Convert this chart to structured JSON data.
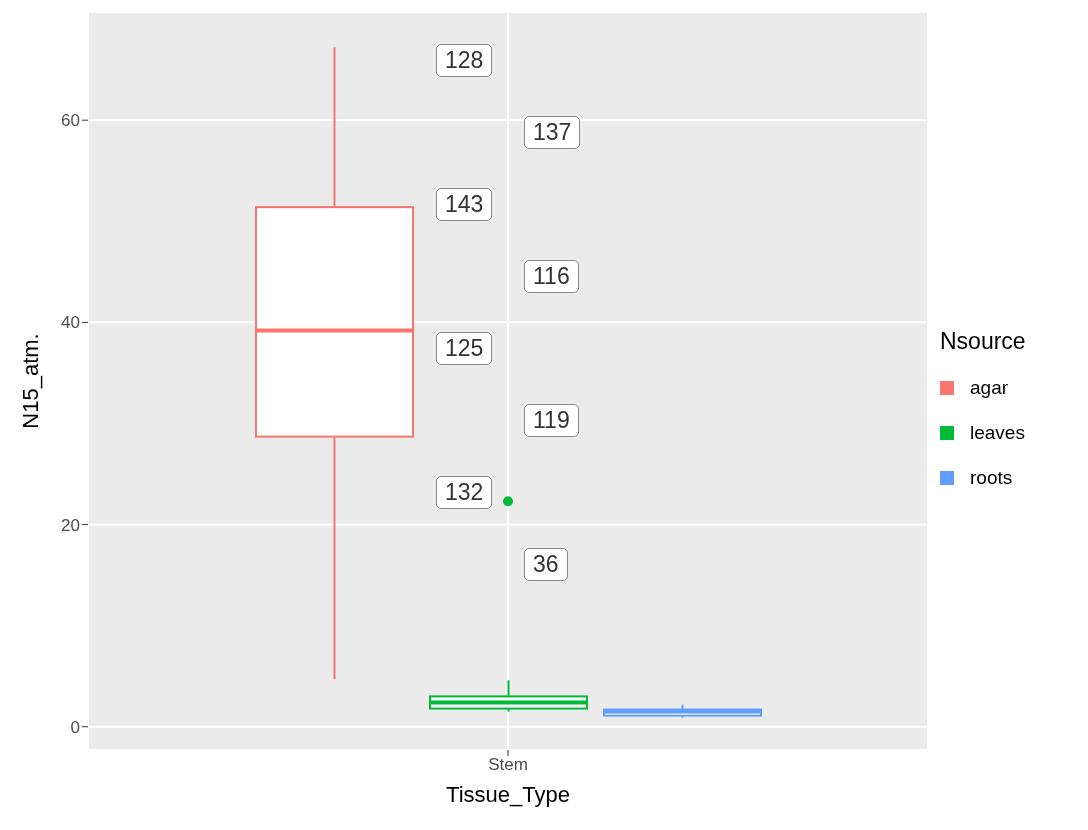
{
  "chart_data": {
    "type": "box",
    "xlabel": "Tissue_Type",
    "ylabel": "N15_atm.",
    "legend_title": "Nsource",
    "legend": "right",
    "grid": true,
    "categories": [
      "Stem"
    ],
    "ylim": [
      -2.3,
      70.7
    ],
    "yticks": [
      0,
      20,
      40,
      60
    ],
    "series": [
      {
        "name": "agar",
        "color": "#f8766d",
        "boxes": [
          {
            "low": 4.7,
            "q1": 28.7,
            "median": 39.2,
            "q3": 51.4,
            "high": 67.2
          }
        ]
      },
      {
        "name": "leaves",
        "color": "#00ba38",
        "boxes": [
          {
            "low": 1.5,
            "q1": 1.8,
            "median": 2.4,
            "q3": 3.0,
            "high": 4.6,
            "outliers": [
              22.3
            ]
          }
        ]
      },
      {
        "name": "roots",
        "color": "#619cff",
        "boxes": [
          {
            "low": 0.9,
            "q1": 1.1,
            "median": 1.5,
            "q3": 1.7,
            "high": 2.2
          }
        ]
      }
    ],
    "annotations": [
      "128",
      "137",
      "143",
      "116",
      "125",
      "119",
      "132",
      "36"
    ]
  }
}
